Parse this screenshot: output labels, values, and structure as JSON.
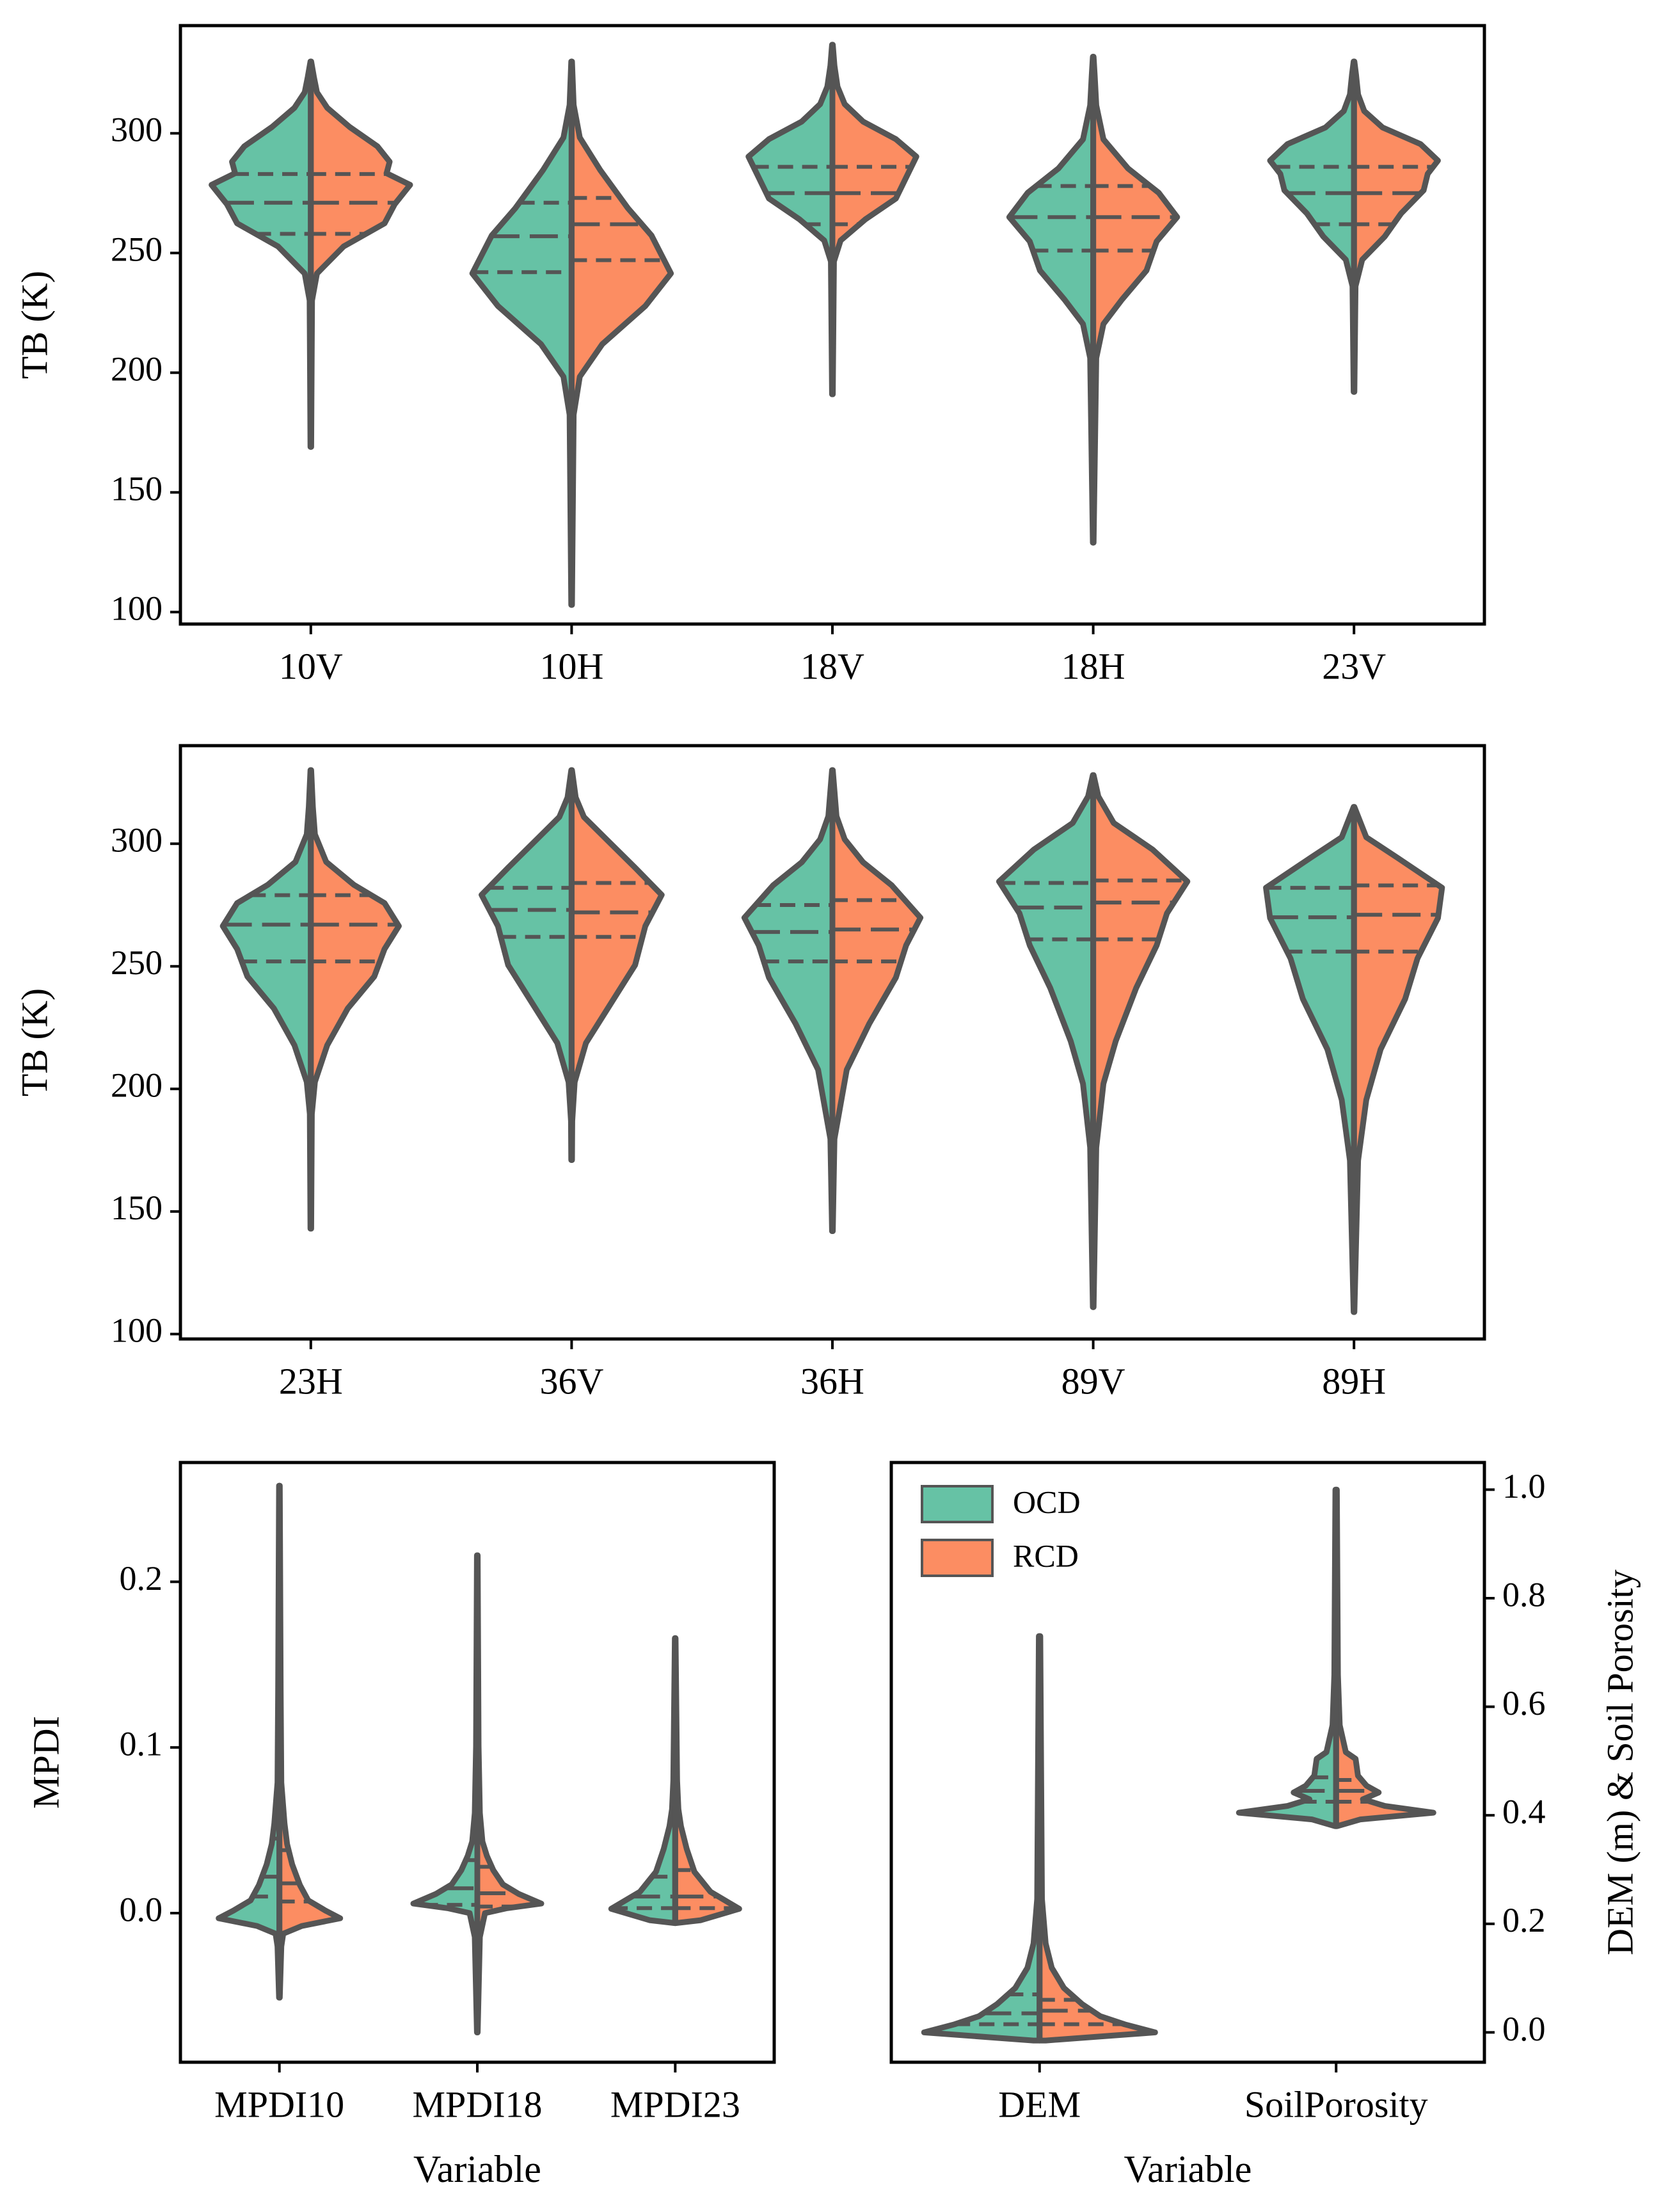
{
  "colors": {
    "ocd": "#66c2a5",
    "rcd": "#fc8d62",
    "outline": "#555555"
  },
  "chart_data": [
    {
      "type": "violin",
      "ylabel": "TB (K)",
      "ylim": [
        95,
        345
      ],
      "yticks": [
        100,
        150,
        200,
        250,
        300
      ],
      "categories": [
        "10V",
        "10H",
        "18V",
        "18H",
        "23V"
      ],
      "series": [
        {
          "name": "OCD",
          "min": [
            169,
            103,
            191,
            129,
            192
          ],
          "q1": [
            258,
            242,
            262,
            251,
            262
          ],
          "median": [
            271,
            257,
            275,
            265,
            275
          ],
          "q3": [
            283,
            271,
            286,
            278,
            286
          ],
          "max": [
            330,
            330,
            337,
            332,
            330
          ]
        },
        {
          "name": "RCD",
          "min": [
            169,
            103,
            191,
            129,
            192
          ],
          "q1": [
            258,
            247,
            262,
            251,
            262
          ],
          "median": [
            271,
            262,
            275,
            265,
            275
          ],
          "q3": [
            283,
            273,
            286,
            278,
            286
          ],
          "max": [
            330,
            330,
            337,
            332,
            330
          ]
        }
      ]
    },
    {
      "type": "violin",
      "ylabel": "TB (K)",
      "ylim": [
        98,
        340
      ],
      "yticks": [
        100,
        150,
        200,
        250,
        300
      ],
      "categories": [
        "23H",
        "36V",
        "36H",
        "89V",
        "89H"
      ],
      "series": [
        {
          "name": "OCD",
          "min": [
            143,
            171,
            142,
            111,
            109
          ],
          "q1": [
            252,
            262,
            252,
            261,
            256
          ],
          "median": [
            267,
            273,
            264,
            274,
            270
          ],
          "q3": [
            279,
            282,
            275,
            284,
            282
          ],
          "max": [
            330,
            330,
            330,
            328,
            315
          ]
        },
        {
          "name": "RCD",
          "min": [
            143,
            171,
            142,
            111,
            109
          ],
          "q1": [
            252,
            262,
            252,
            261,
            256
          ],
          "median": [
            267,
            272,
            265,
            276,
            271
          ],
          "q3": [
            279,
            284,
            277,
            285,
            283
          ],
          "max": [
            330,
            330,
            330,
            328,
            315
          ]
        }
      ]
    },
    {
      "type": "violin",
      "xlabel": "Variable",
      "ylabel": "MPDI",
      "ylim": [
        -0.09,
        0.272
      ],
      "yticks": [
        0.0,
        0.1,
        0.2
      ],
      "ytick_labels": [
        "0.0",
        "0.1",
        "0.2"
      ],
      "categories": [
        "MPDI10",
        "MPDI18",
        "MPDI23"
      ],
      "series": [
        {
          "name": "OCD",
          "min": [
            -0.051,
            -0.072,
            -0.006
          ],
          "q1": [
            0.01,
            0.005,
            0.003
          ],
          "median": [
            0.022,
            0.015,
            0.01
          ],
          "q3": [
            0.045,
            0.032,
            0.022
          ],
          "max": [
            0.258,
            0.216,
            0.166
          ]
        },
        {
          "name": "RCD",
          "min": [
            -0.051,
            -0.072,
            -0.006
          ],
          "q1": [
            0.007,
            0.004,
            0.003
          ],
          "median": [
            0.018,
            0.012,
            0.01
          ],
          "q3": [
            0.038,
            0.028,
            0.026
          ],
          "max": [
            0.258,
            0.216,
            0.166
          ]
        }
      ]
    },
    {
      "type": "violin",
      "xlabel": "Variable",
      "ylabel": "DEM (m) & Soil Porosity",
      "ylim": [
        -0.055,
        1.05
      ],
      "yticks": [
        0.0,
        0.2,
        0.4,
        0.6,
        0.8,
        1.0
      ],
      "ytick_labels": [
        "0.0",
        "0.2",
        "0.4",
        "0.6",
        "0.8",
        "1.0"
      ],
      "categories": [
        "DEM",
        "SoilPorosity"
      ],
      "legend": {
        "position": "top-left",
        "entries": [
          "OCD",
          "RCD"
        ]
      },
      "series": [
        {
          "name": "OCD",
          "min": [
            -0.015,
            0.38
          ],
          "q1": [
            0.015,
            0.425
          ],
          "median": [
            0.035,
            0.445
          ],
          "q3": [
            0.07,
            0.47
          ],
          "max": [
            0.73,
            1.0
          ]
        },
        {
          "name": "RCD",
          "min": [
            -0.015,
            0.38
          ],
          "q1": [
            0.015,
            0.425
          ],
          "median": [
            0.04,
            0.445
          ],
          "q3": [
            0.06,
            0.465
          ],
          "max": [
            0.73,
            1.0
          ]
        }
      ]
    }
  ]
}
